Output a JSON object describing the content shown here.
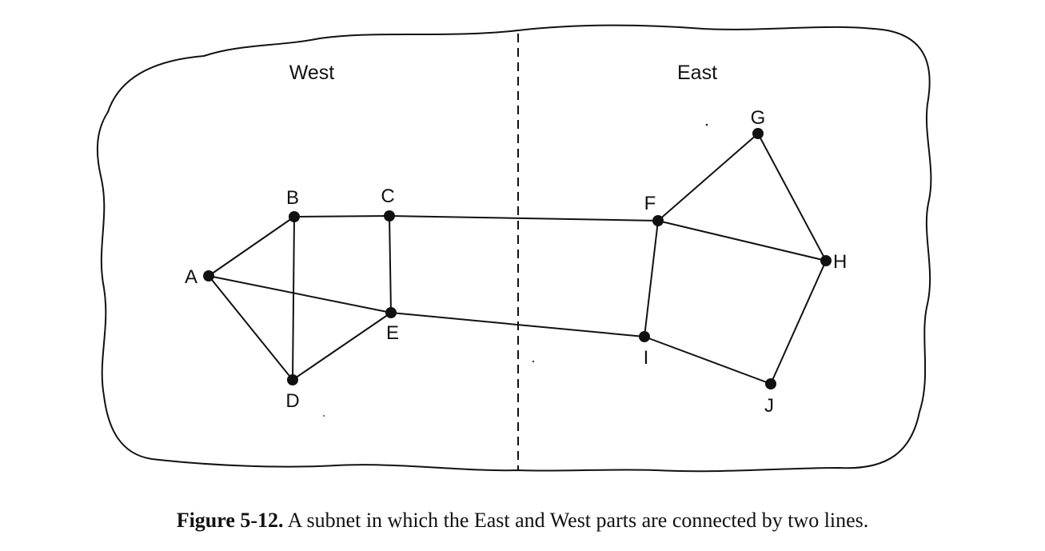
{
  "regions": [
    {
      "id": "west",
      "label": "West"
    },
    {
      "id": "east",
      "label": "East"
    }
  ],
  "nodes": [
    {
      "id": "A",
      "label": "A"
    },
    {
      "id": "B",
      "label": "B"
    },
    {
      "id": "C",
      "label": "C"
    },
    {
      "id": "D",
      "label": "D"
    },
    {
      "id": "E",
      "label": "E"
    },
    {
      "id": "F",
      "label": "F"
    },
    {
      "id": "G",
      "label": "G"
    },
    {
      "id": "H",
      "label": "H"
    },
    {
      "id": "I",
      "label": "I"
    },
    {
      "id": "J",
      "label": "J"
    }
  ],
  "edges": [
    [
      "A",
      "B"
    ],
    [
      "A",
      "D"
    ],
    [
      "A",
      "E"
    ],
    [
      "B",
      "C"
    ],
    [
      "B",
      "D"
    ],
    [
      "C",
      "E"
    ],
    [
      "C",
      "F"
    ],
    [
      "D",
      "E"
    ],
    [
      "E",
      "I"
    ],
    [
      "F",
      "G"
    ],
    [
      "F",
      "H"
    ],
    [
      "F",
      "I"
    ],
    [
      "G",
      "H"
    ],
    [
      "H",
      "J"
    ],
    [
      "I",
      "J"
    ]
  ],
  "caption": {
    "figure_number": "Figure 5-12.",
    "text": "A subnet in which the East and West parts are connected by two lines."
  }
}
